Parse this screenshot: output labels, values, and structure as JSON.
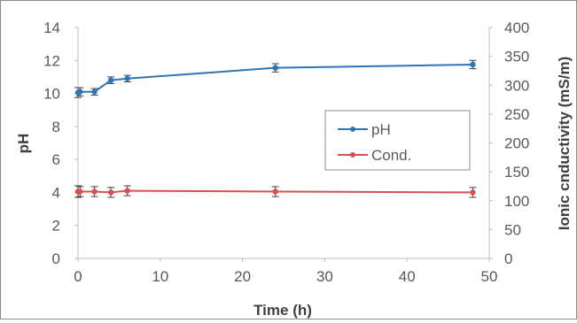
{
  "chart_data": {
    "type": "line",
    "xlabel": "Time (h)",
    "ylabel": "pH",
    "y2label": "Ionic cnductivity  (mS/m)",
    "xlim": [
      0,
      50
    ],
    "ylim": [
      0,
      14
    ],
    "y2lim": [
      0,
      400
    ],
    "x_ticks": [
      "0",
      "10",
      "20",
      "30",
      "40",
      "50"
    ],
    "y_ticks": [
      "0",
      "2",
      "4",
      "6",
      "8",
      "10",
      "12",
      "14"
    ],
    "y2_ticks": [
      "0",
      "50",
      "100",
      "150",
      "200",
      "250",
      "300",
      "350",
      "400"
    ],
    "grid": false,
    "legend_position": "right",
    "series": [
      {
        "name": "pH",
        "color": "#2e75b6",
        "axis": "left",
        "x": [
          0,
          0.25,
          2,
          4,
          6,
          24,
          48
        ],
        "y": [
          10.05,
          10.1,
          10.1,
          10.8,
          10.9,
          11.55,
          11.75
        ],
        "error": [
          0.3,
          0.25,
          0.2,
          0.2,
          0.2,
          0.25,
          0.25
        ]
      },
      {
        "name": "Cond.",
        "color": "#d94f4f",
        "axis": "left",
        "x": [
          0,
          0.25,
          2,
          4,
          6,
          24,
          48
        ],
        "y": [
          4.05,
          4.05,
          4.05,
          4.0,
          4.1,
          4.05,
          4.0
        ],
        "error": [
          0.35,
          0.3,
          0.3,
          0.3,
          0.3,
          0.3,
          0.3
        ]
      }
    ]
  }
}
